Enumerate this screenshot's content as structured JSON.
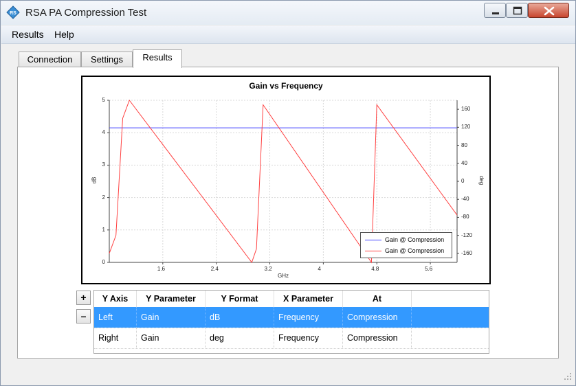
{
  "window": {
    "title": "RSA PA Compression Test"
  },
  "menu": {
    "items": [
      "Results",
      "Help"
    ]
  },
  "tabs": [
    {
      "label": "Connection",
      "active": false
    },
    {
      "label": "Settings",
      "active": false
    },
    {
      "label": "Results",
      "active": true
    }
  ],
  "chart_data": {
    "type": "line",
    "title": "Gain vs Frequency",
    "xlabel": "GHz",
    "ylabel": "dB",
    "y2label": "deg",
    "xlim": [
      0.8,
      6.0
    ],
    "ylim": [
      0,
      5
    ],
    "y2lim": [
      -180,
      180
    ],
    "xticks": [
      "1.6",
      "2.4",
      "3.2",
      "4",
      "4.8",
      "5.6"
    ],
    "yticks": [
      "0",
      "1",
      "2",
      "3",
      "4",
      "5"
    ],
    "y2ticks": [
      "-160",
      "-120",
      "-80",
      "-40",
      "0",
      "40",
      "80",
      "120",
      "160"
    ],
    "grid": true,
    "legend_position": "bottom-right",
    "series": [
      {
        "name": "Gain @ Compression",
        "axis": "left",
        "color": "#4040ff",
        "x": [
          0.8,
          6.0
        ],
        "y": [
          4.15,
          4.15
        ]
      },
      {
        "name": "Gain @ Compression",
        "axis": "right",
        "color": "#ff4040",
        "x": [
          0.8,
          0.9,
          1.0,
          1.1,
          2.93,
          3.0,
          3.1,
          4.72,
          4.8,
          6.0
        ],
        "y": [
          -160,
          -120,
          140,
          180,
          -180,
          -150,
          170,
          -180,
          170,
          -75
        ]
      }
    ]
  },
  "buttons": {
    "add": "+",
    "remove": "–"
  },
  "table": {
    "headers": [
      "Y Axis",
      "Y Parameter",
      "Y Format",
      "X Parameter",
      "At"
    ],
    "rows": [
      {
        "cells": [
          "Left",
          "Gain",
          "dB",
          "Frequency",
          "Compression"
        ],
        "selected": true
      },
      {
        "cells": [
          "Right",
          "Gain",
          "deg",
          "Frequency",
          "Compression"
        ],
        "selected": false
      }
    ]
  }
}
